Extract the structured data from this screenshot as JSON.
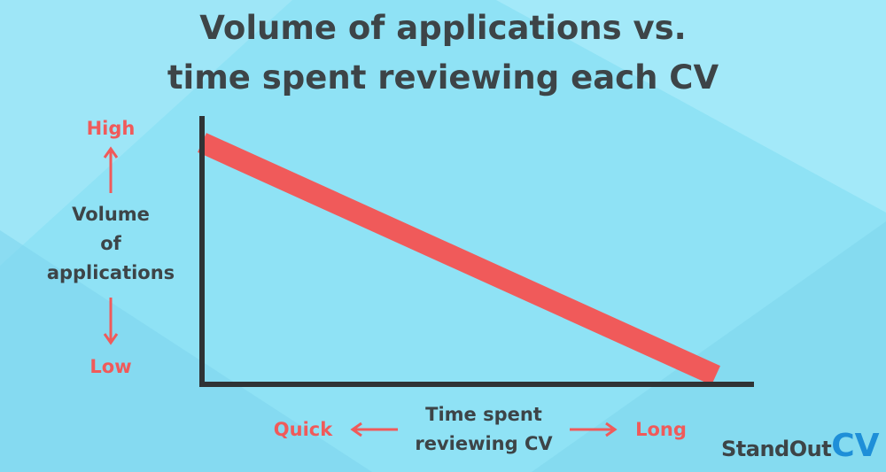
{
  "title_line1": "Volume of applications vs.",
  "title_line2": "time spent reviewing each CV",
  "y_axis": {
    "label_lines": [
      "Volume",
      "of",
      "applications"
    ],
    "high_label": "High",
    "low_label": "Low"
  },
  "x_axis": {
    "label_lines": [
      "Time spent",
      "reviewing CV"
    ],
    "low_label": "Quick",
    "high_label": "Long"
  },
  "brand": {
    "name": "StandOut",
    "accent": "CV"
  },
  "colors": {
    "background": "#8fe2f5",
    "text": "#3d4447",
    "accent_red": "#f05a5a",
    "brand_blue": "#1e8fd8"
  },
  "chart_data": {
    "type": "line",
    "title": "Volume of applications vs. time spent reviewing each CV",
    "xlabel": "Time spent reviewing CV",
    "ylabel": "Volume of applications",
    "x": [
      0,
      1
    ],
    "series": [
      {
        "values": [
          1,
          0
        ]
      }
    ],
    "xlim": [
      0,
      1
    ],
    "ylim": [
      0,
      1
    ],
    "grid": false
  }
}
